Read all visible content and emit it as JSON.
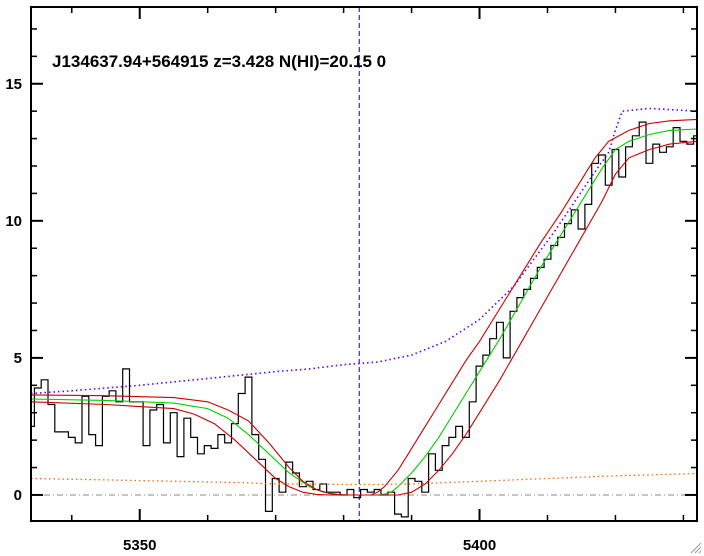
{
  "chart_data": {
    "type": "line",
    "title": "J134637.94+564915 z=3.428 N(HI)=20.15 0",
    "xlabel": "",
    "ylabel": "",
    "xlim": [
      5334,
      5432
    ],
    "ylim": [
      -0.95,
      17.8
    ],
    "x_ticks": [
      5350,
      5400
    ],
    "y_ticks": [
      0,
      5,
      10,
      15
    ],
    "x_tick_labels": [
      "5350",
      "5400"
    ],
    "y_tick_labels": [
      "0",
      "5",
      "10",
      "15"
    ],
    "grid": false,
    "legend": "none",
    "vertical_marker_x": 5382.3,
    "zero_line_y": 0,
    "colors": {
      "flux": "#000000",
      "model": "#00cc00",
      "bounds": "#cc0000",
      "continuum": "#5a00ff",
      "error": "#ff6600",
      "marker": "#0000cc",
      "zero": "#888888"
    },
    "series": [
      {
        "role": "flux",
        "style": "step",
        "x": [
          5334,
          5335,
          5336,
          5337,
          5338,
          5339,
          5340,
          5341,
          5342,
          5343,
          5344,
          5345,
          5346,
          5347,
          5348,
          5349,
          5350,
          5351,
          5352,
          5353,
          5354,
          5355,
          5356,
          5357,
          5358,
          5359,
          5360,
          5361,
          5362,
          5363,
          5364,
          5365,
          5366,
          5367,
          5368,
          5369,
          5370,
          5371,
          5372,
          5373,
          5374,
          5375,
          5376,
          5377,
          5378,
          5379,
          5380,
          5381,
          5382,
          5383,
          5384,
          5385,
          5386,
          5387,
          5388,
          5389,
          5390,
          5391,
          5392,
          5393,
          5394,
          5395,
          5396,
          5397,
          5398,
          5399,
          5400,
          5401,
          5402,
          5403,
          5404,
          5405,
          5406,
          5407,
          5408,
          5409,
          5410,
          5411,
          5412,
          5413,
          5414,
          5415,
          5416,
          5417,
          5418,
          5419,
          5420,
          5421,
          5422,
          5423,
          5424,
          5425,
          5426,
          5427,
          5428,
          5429,
          5430,
          5431,
          5432
        ],
        "y": [
          2.5,
          3.9,
          4.2,
          3.3,
          2.3,
          2.3,
          2.1,
          1.9,
          3.6,
          2.2,
          1.8,
          3.6,
          3.8,
          3.4,
          4.6,
          3.4,
          3.4,
          1.8,
          3.1,
          3.3,
          1.9,
          3.0,
          1.4,
          2.8,
          2.1,
          1.5,
          1.8,
          1.7,
          2.2,
          1.9,
          2.6,
          3.7,
          4.3,
          2.2,
          1.3,
          -0.6,
          0.6,
          0.1,
          1.2,
          0.8,
          0.3,
          0.5,
          0.2,
          0.4,
          0.1,
          0.1,
          0.0,
          0.2,
          -0.1,
          0.2,
          0.1,
          0.2,
          0.0,
          0.1,
          -0.7,
          -0.8,
          0.6,
          0.5,
          0.1,
          1.5,
          0.9,
          1.8,
          2.1,
          2.5,
          2.1,
          3.4,
          4.7,
          5.1,
          5.7,
          6.3,
          5.0,
          6.7,
          7.2,
          7.5,
          7.9,
          8.3,
          8.6,
          9.1,
          9.4,
          9.9,
          10.4,
          9.7,
          10.6,
          12.1,
          12.4,
          11.3,
          12.6,
          11.6,
          12.7,
          13.1,
          13.6,
          12.1,
          12.8,
          12.5,
          12.7,
          13.4,
          12.9,
          12.8,
          13.1
        ]
      },
      {
        "role": "continuum",
        "style": "dotted",
        "x": [
          5334,
          5340,
          5350,
          5360,
          5370,
          5375,
          5380,
          5385,
          5390,
          5395,
          5400,
          5405,
          5408,
          5411,
          5414,
          5417,
          5419,
          5420,
          5421,
          5425,
          5432
        ],
        "y": [
          3.7,
          3.8,
          4.0,
          4.25,
          4.5,
          4.6,
          4.75,
          4.85,
          5.1,
          5.6,
          6.4,
          7.6,
          8.6,
          9.6,
          10.7,
          11.8,
          12.5,
          13.3,
          14.0,
          14.1,
          14.0
        ]
      },
      {
        "role": "model",
        "style": "solid",
        "x": [
          5334,
          5345,
          5355,
          5360,
          5363,
          5366,
          5369,
          5372,
          5375,
          5377,
          5379,
          5381,
          5383,
          5385,
          5386,
          5387,
          5388,
          5390,
          5392,
          5394,
          5396,
          5398,
          5400,
          5403,
          5406,
          5409,
          5412,
          5415,
          5418,
          5420,
          5422,
          5425,
          5428,
          5432
        ],
        "y": [
          3.5,
          3.45,
          3.35,
          3.15,
          2.8,
          2.2,
          1.5,
          0.8,
          0.3,
          0.1,
          0.02,
          0.0,
          0.0,
          0.0,
          0.03,
          0.1,
          0.3,
          0.8,
          1.4,
          2.1,
          2.9,
          3.7,
          4.5,
          5.7,
          7.0,
          8.3,
          9.5,
          10.7,
          11.9,
          12.6,
          12.9,
          13.15,
          13.3,
          13.35
        ]
      },
      {
        "role": "upper-bound",
        "style": "solid",
        "x": [
          5334,
          5345,
          5355,
          5360,
          5363,
          5366,
          5369,
          5372,
          5374,
          5376,
          5378,
          5380,
          5382,
          5384,
          5385,
          5386,
          5388,
          5390,
          5392,
          5394,
          5396,
          5398,
          5400,
          5403,
          5406,
          5409,
          5412,
          5415,
          5417,
          5419,
          5422,
          5425,
          5428,
          5432
        ],
        "y": [
          3.65,
          3.62,
          3.55,
          3.4,
          3.1,
          2.7,
          1.9,
          1.0,
          0.5,
          0.2,
          0.05,
          0.0,
          0.0,
          0.0,
          0.1,
          0.3,
          0.9,
          1.7,
          2.5,
          3.3,
          4.1,
          4.9,
          5.6,
          6.8,
          8.0,
          9.2,
          10.3,
          11.5,
          12.3,
          12.9,
          13.3,
          13.55,
          13.65,
          13.7
        ]
      },
      {
        "role": "lower-bound",
        "style": "solid",
        "x": [
          5334,
          5345,
          5355,
          5358,
          5361,
          5364,
          5367,
          5370,
          5372,
          5374,
          5376,
          5378,
          5380,
          5382,
          5384,
          5386,
          5388,
          5390,
          5392,
          5394,
          5396,
          5398,
          5400,
          5403,
          5406,
          5409,
          5412,
          5415,
          5418,
          5420,
          5422,
          5425,
          5428,
          5432
        ],
        "y": [
          3.4,
          3.3,
          3.15,
          2.95,
          2.6,
          2.0,
          1.3,
          0.6,
          0.3,
          0.1,
          0.02,
          0.0,
          0.0,
          0.0,
          0.0,
          0.0,
          0.0,
          0.1,
          0.4,
          0.9,
          1.5,
          2.2,
          3.0,
          4.2,
          5.5,
          6.8,
          8.1,
          9.4,
          10.7,
          11.7,
          12.3,
          12.6,
          12.8,
          12.9
        ]
      },
      {
        "role": "error",
        "style": "dotted",
        "x": [
          5334,
          5345,
          5355,
          5365,
          5370,
          5375,
          5380,
          5385,
          5390,
          5395,
          5400,
          5410,
          5420,
          5432
        ],
        "y": [
          0.6,
          0.55,
          0.5,
          0.45,
          0.4,
          0.4,
          0.38,
          0.38,
          0.4,
          0.45,
          0.5,
          0.6,
          0.7,
          0.78
        ]
      }
    ]
  }
}
